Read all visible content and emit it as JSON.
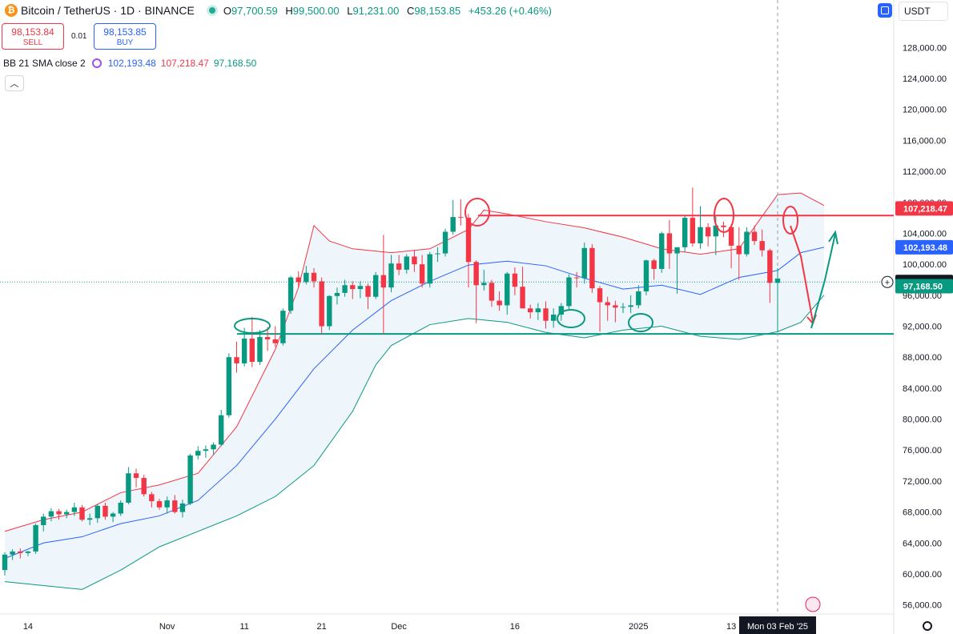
{
  "header": {
    "symbol": "Bitcoin / TetherUS · 1D · BINANCE",
    "open_label": "O",
    "open": "97,700.59",
    "high_label": "H",
    "high": "99,500.00",
    "low_label": "L",
    "low": "91,231.00",
    "close_label": "C",
    "close": "98,153.85",
    "change": "+453.26 (+0.46%)"
  },
  "trade": {
    "sell_price": "98,153.84",
    "sell_label": "SELL",
    "spread": "0.01",
    "buy_price": "98,153.85",
    "buy_label": "BUY"
  },
  "indicator": {
    "name": "BB 21 SMA close 2",
    "basis": "102,193.48",
    "upper": "107,218.47",
    "lower": "97,168.50"
  },
  "currency": "USDT",
  "colors": {
    "up": "#089981",
    "down": "#f23645",
    "basis": "#2962ff",
    "upper_band": "#f23645",
    "lower_band": "#089981",
    "band_fill": "#eef5fb"
  },
  "chart_data": {
    "type": "candlestick",
    "y_range": [
      54000,
      130000
    ],
    "y_ticks": [
      {
        "v": 128000,
        "label": "128,000.00"
      },
      {
        "v": 124000,
        "label": "124,000.00"
      },
      {
        "v": 120000,
        "label": "120,000.00"
      },
      {
        "v": 116000,
        "label": "116,000.00"
      },
      {
        "v": 112000,
        "label": "112,000.00"
      },
      {
        "v": 108000,
        "label": "108,000.00"
      },
      {
        "v": 104000,
        "label": "104,000.00"
      },
      {
        "v": 100000,
        "label": "100,000.00"
      },
      {
        "v": 96000,
        "label": "96,000.00"
      },
      {
        "v": 92000,
        "label": "92,000.00"
      },
      {
        "v": 88000,
        "label": "88,000.00"
      },
      {
        "v": 84000,
        "label": "84,000.00"
      },
      {
        "v": 80000,
        "label": "80,000.00"
      },
      {
        "v": 76000,
        "label": "76,000.00"
      },
      {
        "v": 72000,
        "label": "72,000.00"
      },
      {
        "v": 68000,
        "label": "68,000.00"
      },
      {
        "v": 64000,
        "label": "64,000.00"
      },
      {
        "v": 60000,
        "label": "60,000.00"
      },
      {
        "v": 56000,
        "label": "56,000.00"
      }
    ],
    "x_ticks": [
      {
        "i": 3,
        "label": "14"
      },
      {
        "i": 21,
        "label": "Nov"
      },
      {
        "i": 31,
        "label": "11"
      },
      {
        "i": 41,
        "label": "21"
      },
      {
        "i": 51,
        "label": "Dec"
      },
      {
        "i": 66,
        "label": "16"
      },
      {
        "i": 82,
        "label": "2025"
      },
      {
        "i": 94,
        "label": "13"
      }
    ],
    "crosshair_date": "Mon 03 Feb '25",
    "price_labels": [
      {
        "v": 107218.47,
        "label": "107,218.47",
        "color": "#f23645"
      },
      {
        "v": 102193.48,
        "label": "102,193.48",
        "color": "#2962ff"
      },
      {
        "v": 97711.63,
        "label": "97,711.63",
        "color": "#131722"
      },
      {
        "v": 97168.5,
        "label": "97,168.50",
        "color": "#089981"
      }
    ],
    "resistance": 106300,
    "support": 91000,
    "candles": [
      [
        60500,
        62800,
        59800,
        62500
      ],
      [
        62500,
        63200,
        61800,
        62900
      ],
      [
        62900,
        63300,
        62000,
        62700
      ],
      [
        62700,
        63000,
        62300,
        62900
      ],
      [
        62900,
        66500,
        62600,
        66300
      ],
      [
        66300,
        67800,
        65500,
        67400
      ],
      [
        67400,
        68500,
        66800,
        68100
      ],
      [
        68100,
        68400,
        67000,
        67700
      ],
      [
        67700,
        68300,
        67200,
        68000
      ],
      [
        68000,
        69200,
        67500,
        68600
      ],
      [
        68600,
        68900,
        66800,
        67000
      ],
      [
        67000,
        67800,
        66300,
        67200
      ],
      [
        67200,
        69000,
        66600,
        68800
      ],
      [
        68800,
        69200,
        67000,
        67400
      ],
      [
        67400,
        68000,
        66700,
        67800
      ],
      [
        67800,
        69500,
        67500,
        69200
      ],
      [
        69200,
        73800,
        69000,
        73000
      ],
      [
        73000,
        73600,
        71200,
        72400
      ],
      [
        72400,
        72800,
        70000,
        70300
      ],
      [
        70300,
        70600,
        68600,
        69400
      ],
      [
        69400,
        69700,
        68300,
        68600
      ],
      [
        68600,
        70000,
        67800,
        69500
      ],
      [
        69500,
        70200,
        67800,
        68000
      ],
      [
        68000,
        69600,
        67300,
        69100
      ],
      [
        69100,
        75500,
        68900,
        75300
      ],
      [
        75300,
        76500,
        74800,
        75900
      ],
      [
        75900,
        76600,
        75000,
        76100
      ],
      [
        76100,
        77000,
        75400,
        76700
      ],
      [
        76700,
        81200,
        76500,
        80500
      ],
      [
        80500,
        88500,
        80200,
        88000
      ],
      [
        88000,
        90000,
        86000,
        87200
      ],
      [
        87200,
        91800,
        86800,
        90400
      ],
      [
        90400,
        93200,
        86700,
        87400
      ],
      [
        87400,
        91500,
        87000,
        90600
      ],
      [
        90600,
        91900,
        88800,
        90300
      ],
      [
        90300,
        92000,
        89300,
        89800
      ],
      [
        89800,
        94300,
        89500,
        94000
      ],
      [
        94000,
        98500,
        93600,
        98300
      ],
      [
        98300,
        99100,
        97000,
        97700
      ],
      [
        97700,
        99800,
        97400,
        98900
      ],
      [
        98900,
        99500,
        97000,
        97800
      ],
      [
        97800,
        98300,
        91000,
        92000
      ],
      [
        92000,
        96000,
        91500,
        95900
      ],
      [
        95900,
        97000,
        94800,
        96300
      ],
      [
        96300,
        98000,
        95800,
        97300
      ],
      [
        97300,
        97800,
        95500,
        96800
      ],
      [
        96800,
        97800,
        95600,
        97200
      ],
      [
        97200,
        97500,
        94200,
        95800
      ],
      [
        95800,
        99000,
        95500,
        98600
      ],
      [
        98600,
        103800,
        91000,
        97000
      ],
      [
        97000,
        101200,
        96400,
        100100
      ],
      [
        100100,
        101200,
        98600,
        99300
      ],
      [
        99300,
        101300,
        98800,
        101000
      ],
      [
        101000,
        101800,
        99000,
        100000
      ],
      [
        100000,
        101200,
        97000,
        97500
      ],
      [
        97500,
        101600,
        97000,
        101300
      ],
      [
        101300,
        102200,
        100300,
        101400
      ],
      [
        101400,
        104600,
        101000,
        104200
      ],
      [
        104200,
        108300,
        103800,
        106100
      ],
      [
        106100,
        108400,
        105000,
        106000
      ],
      [
        106000,
        106500,
        97000,
        100300
      ],
      [
        100300,
        100500,
        92400,
        97300
      ],
      [
        97300,
        99300,
        96600,
        97600
      ],
      [
        97600,
        98000,
        94500,
        95300
      ],
      [
        95300,
        96500,
        94000,
        94700
      ],
      [
        94700,
        99000,
        93500,
        98800
      ],
      [
        98800,
        99600,
        96000,
        97100
      ],
      [
        97100,
        99700,
        95000,
        94300
      ],
      [
        94300,
        94800,
        93000,
        93800
      ],
      [
        93800,
        95000,
        92800,
        94300
      ],
      [
        94300,
        95200,
        91700,
        92700
      ],
      [
        92700,
        94300,
        91800,
        93500
      ],
      [
        93500,
        95000,
        92700,
        94600
      ],
      [
        94600,
        98700,
        94200,
        98300
      ],
      [
        98300,
        99000,
        97000,
        98200
      ],
      [
        98200,
        102800,
        97500,
        102100
      ],
      [
        102100,
        102600,
        96300,
        96900
      ],
      [
        96900,
        97200,
        91300,
        95100
      ],
      [
        95100,
        95800,
        92700,
        94700
      ],
      [
        94700,
        95300,
        92500,
        94400
      ],
      [
        94400,
        95000,
        93700,
        94500
      ],
      [
        94500,
        96000,
        93700,
        94700
      ],
      [
        94700,
        97300,
        94300,
        96500
      ],
      [
        96500,
        100600,
        96000,
        100500
      ],
      [
        100500,
        100700,
        98000,
        99400
      ],
      [
        99400,
        104200,
        98900,
        104000
      ],
      [
        104000,
        105700,
        99400,
        101400
      ],
      [
        101400,
        101600,
        96200,
        102200
      ],
      [
        102200,
        106300,
        101600,
        106000
      ],
      [
        106000,
        109900,
        102300,
        102700
      ],
      [
        102700,
        107500,
        102000,
        104800
      ],
      [
        104800,
        105300,
        102300,
        103600
      ],
      [
        103600,
        106200,
        101200,
        105000
      ],
      [
        105000,
        105500,
        103500,
        104800
      ],
      [
        104800,
        105200,
        99500,
        102400
      ],
      [
        102400,
        104800,
        98000,
        101300
      ],
      [
        101300,
        104800,
        101000,
        104200
      ],
      [
        104200,
        105000,
        102500,
        103000
      ],
      [
        103000,
        104500,
        101000,
        101800
      ],
      [
        101800,
        102000,
        95000,
        97600
      ],
      [
        97600,
        99500,
        91200,
        98150
      ]
    ],
    "basis_band": [
      [
        0,
        62000
      ],
      [
        5,
        64000
      ],
      [
        10,
        64800
      ],
      [
        15,
        66500
      ],
      [
        20,
        67500
      ],
      [
        25,
        69500
      ],
      [
        30,
        74000
      ],
      [
        35,
        80000
      ],
      [
        40,
        86500
      ],
      [
        45,
        91500
      ],
      [
        50,
        95300
      ],
      [
        55,
        97800
      ],
      [
        60,
        99900
      ],
      [
        65,
        100400
      ],
      [
        70,
        99800
      ],
      [
        75,
        98200
      ],
      [
        80,
        96800
      ],
      [
        85,
        97300
      ],
      [
        90,
        96100
      ],
      [
        95,
        98300
      ],
      [
        100,
        99200
      ],
      [
        103,
        101500
      ],
      [
        106,
        102200
      ]
    ],
    "upper_band": [
      [
        0,
        65500
      ],
      [
        5,
        67000
      ],
      [
        10,
        68000
      ],
      [
        15,
        70500
      ],
      [
        20,
        71500
      ],
      [
        25,
        73000
      ],
      [
        30,
        79000
      ],
      [
        35,
        89000
      ],
      [
        38,
        97000
      ],
      [
        40,
        105000
      ],
      [
        42,
        103000
      ],
      [
        45,
        102000
      ],
      [
        50,
        101500
      ],
      [
        55,
        102000
      ],
      [
        60,
        104500
      ],
      [
        62,
        107000
      ],
      [
        65,
        106500
      ],
      [
        70,
        105500
      ],
      [
        75,
        104700
      ],
      [
        80,
        103500
      ],
      [
        85,
        102000
      ],
      [
        90,
        101300
      ],
      [
        95,
        102000
      ],
      [
        100,
        109000
      ],
      [
        103,
        109200
      ],
      [
        106,
        107600
      ]
    ],
    "lower_band": [
      [
        0,
        59000
      ],
      [
        5,
        58500
      ],
      [
        10,
        58000
      ],
      [
        15,
        60500
      ],
      [
        20,
        63500
      ],
      [
        25,
        65500
      ],
      [
        30,
        67500
      ],
      [
        35,
        70000
      ],
      [
        40,
        74000
      ],
      [
        45,
        81000
      ],
      [
        48,
        87000
      ],
      [
        50,
        89500
      ],
      [
        55,
        92200
      ],
      [
        60,
        93000
      ],
      [
        65,
        92500
      ],
      [
        70,
        91200
      ],
      [
        75,
        90500
      ],
      [
        80,
        91500
      ],
      [
        85,
        92000
      ],
      [
        90,
        90700
      ],
      [
        95,
        90300
      ],
      [
        100,
        91300
      ],
      [
        103,
        92500
      ],
      [
        106,
        96000
      ]
    ]
  }
}
